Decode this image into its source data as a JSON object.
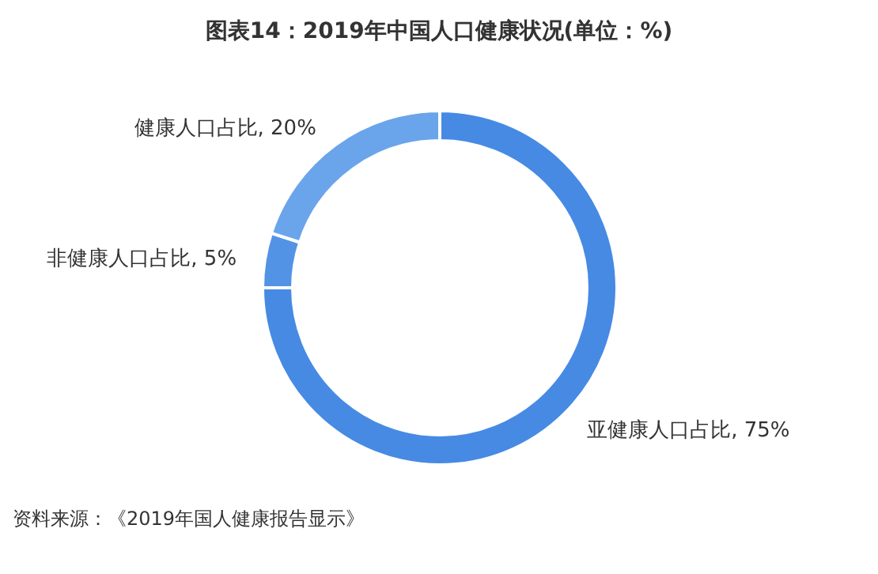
{
  "chart_data": {
    "type": "donut",
    "title": "图表14：2019年中国人口健康状况(单位：%)",
    "categories": [
      "亚健康人口占比",
      "非健康人口占比",
      "健康人口占比"
    ],
    "values": [
      75,
      5,
      20
    ],
    "colors": [
      "#468ae4",
      "#5393e6",
      "#6aa5eb"
    ],
    "value_labels": [
      ", 75%",
      ", 5%",
      ", 20%"
    ],
    "legend": false,
    "annotations": [
      "资料来源：《2019年国人健康报告显示》"
    ]
  }
}
